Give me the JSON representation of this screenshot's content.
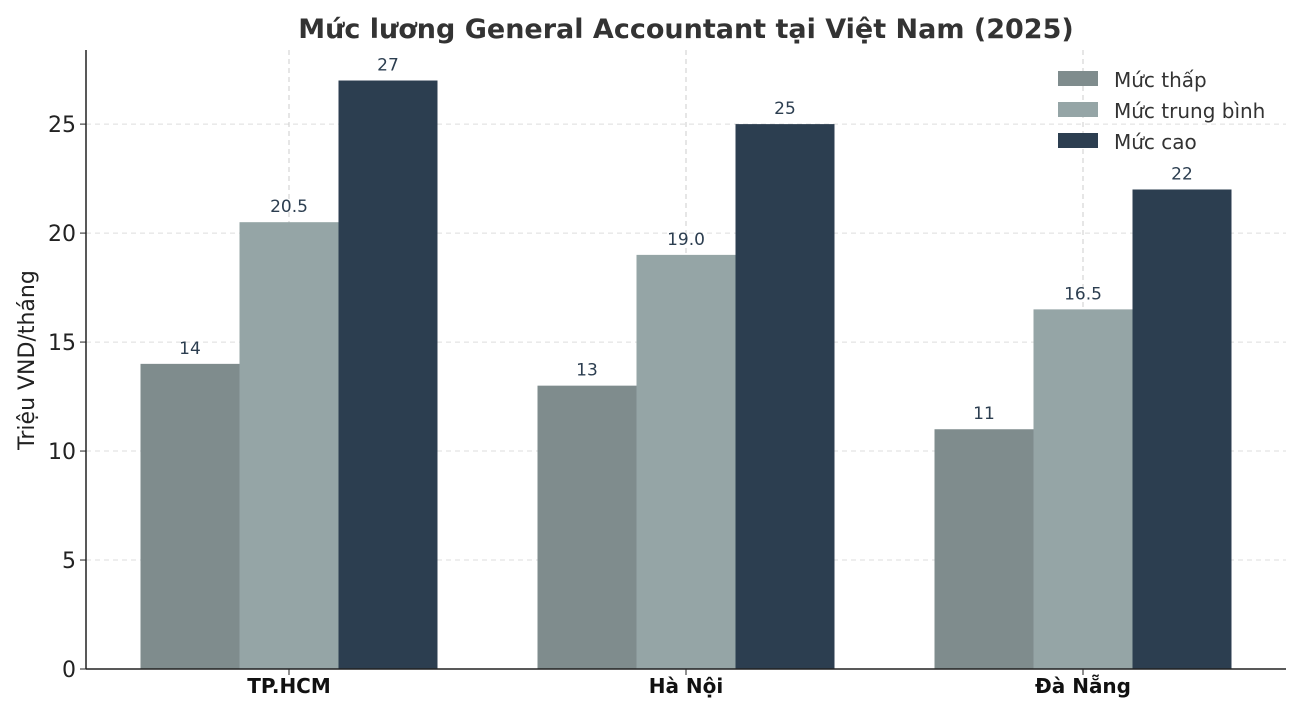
{
  "chart_data": {
    "type": "bar",
    "title": "Mức lương General Accountant tại Việt Nam (2025)",
    "xlabel": "",
    "ylabel": "Triệu VND/tháng",
    "ylim": [
      0,
      28.4
    ],
    "yticks": [
      0,
      5,
      10,
      15,
      20,
      25
    ],
    "categories": [
      "TP.HCM",
      "Hà Nội",
      "Đà Nẵng"
    ],
    "series": [
      {
        "name": "Mức thấp",
        "values": [
          14,
          13,
          11
        ],
        "labels": [
          "14",
          "13",
          "11"
        ],
        "color": "#7f8c8d"
      },
      {
        "name": "Mức trung bình",
        "values": [
          20.5,
          19.0,
          16.5
        ],
        "labels": [
          "20.5",
          "19.0",
          "16.5"
        ],
        "color": "#95a5a6"
      },
      {
        "name": "Mức cao",
        "values": [
          27,
          25,
          22
        ],
        "labels": [
          "27",
          "25",
          "22"
        ],
        "color": "#2c3e50"
      }
    ],
    "legend": "top-right",
    "grid": true
  }
}
